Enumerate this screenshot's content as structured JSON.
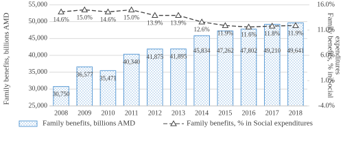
{
  "chart_data": {
    "type": "bar-line",
    "categories": [
      "2008",
      "2009",
      "2010",
      "2011",
      "2012",
      "2013",
      "2014",
      "2015",
      "2016",
      "2017",
      "2018"
    ],
    "ylabel": "Family benefits, billions AMD",
    "y2label_lines": [
      "Family benefits, % in Social",
      "expenditures"
    ],
    "ylim": [
      25000,
      55000
    ],
    "yticks": [
      {
        "value": 25000,
        "label": "25,000"
      },
      {
        "value": 30000,
        "label": "30,000"
      },
      {
        "value": 35000,
        "label": "35,000"
      },
      {
        "value": 40000,
        "label": "40,000"
      },
      {
        "value": 45000,
        "label": "45,000"
      },
      {
        "value": 50000,
        "label": "50,000"
      },
      {
        "value": 55000,
        "label": "55,000"
      }
    ],
    "y2lim": [
      -4,
      16
    ],
    "y2ticks": [
      {
        "value": -4,
        "label": "-4.0%"
      },
      {
        "value": 1,
        "label": "1.0%"
      },
      {
        "value": 6,
        "label": "6.0%"
      },
      {
        "value": 11,
        "label": "11.0%"
      },
      {
        "value": 16,
        "label": "16.0%"
      }
    ],
    "series": [
      {
        "name": "Family benefits, billions AMD",
        "type": "bar",
        "color": "#5b9bd5",
        "values": [
          30750,
          36577,
          35471,
          40340,
          41875,
          41895,
          45834,
          47262,
          47802,
          49210,
          49641
        ],
        "value_labels": [
          "30,750",
          "36,577",
          "35,471",
          "40,340",
          "41,875",
          "41,895",
          "45,834",
          "47,262",
          "47,802",
          "49,210",
          "49,641"
        ]
      },
      {
        "name": "Family benefits, % in Social expenditures",
        "type": "line",
        "axis": "y2",
        "color": "#404040",
        "values": [
          14.6,
          15.0,
          14.6,
          15.0,
          13.9,
          13.9,
          12.6,
          11.9,
          11.6,
          11.8,
          11.9
        ],
        "value_labels": [
          "14.6%",
          "15.0%",
          "14.6%",
          "15.0%",
          "13.9%",
          "13.9%",
          "12.6%",
          "11.9%",
          "11.6%",
          "11.8%",
          "11.9%"
        ]
      }
    ]
  }
}
